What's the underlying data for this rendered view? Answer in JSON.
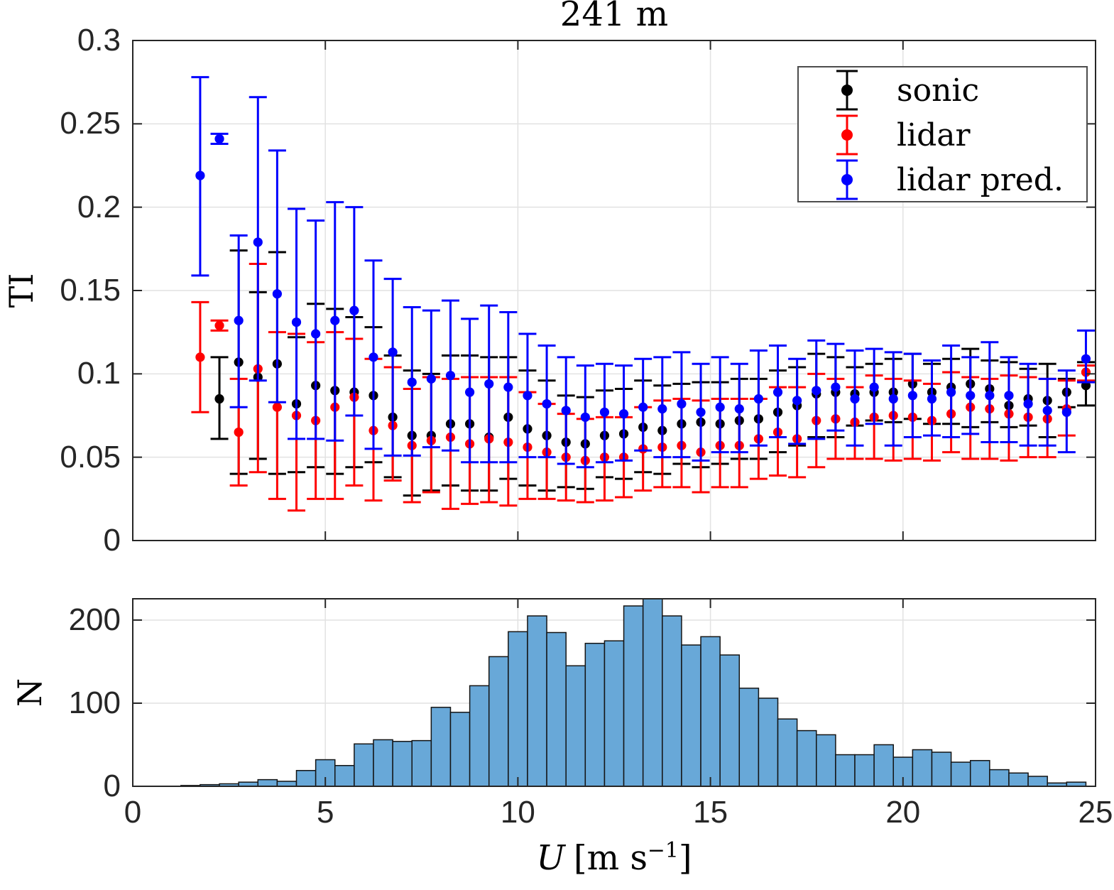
{
  "title": "241 m",
  "axes": {
    "ti": {
      "label": "TI",
      "tick_labels": [
        "0",
        "0.05",
        "0.1",
        "0.15",
        "0.2",
        "0.25",
        "0.3"
      ],
      "lim": [
        0,
        0.3
      ]
    },
    "n": {
      "label": "N",
      "tick_labels": [
        "0",
        "100",
        "200"
      ],
      "lim": [
        0,
        225.6
      ]
    },
    "u": {
      "label_var": "U",
      "label_pre": "[m s",
      "label_sup": "−1",
      "label_post": "]",
      "tick_labels": [
        "0",
        "5",
        "10",
        "15",
        "20",
        "25"
      ],
      "lim": [
        0,
        25
      ]
    }
  },
  "legend": {
    "position": "top-right",
    "entries": [
      {
        "label": "sonic",
        "color": "#000000"
      },
      {
        "label": "lidar",
        "color": "#ff0000"
      },
      {
        "label": "lidar pred.",
        "color": "#0000ff"
      }
    ]
  },
  "colors": {
    "background": "#ffffff",
    "grid": "#e2e2e2",
    "axis": "#262626",
    "histogram_fill": "#68a8d8",
    "histogram_edge": "#141414"
  },
  "chart_data": [
    {
      "type": "scatter",
      "subtype": "errorbar",
      "title": "241 m",
      "ylabel": "TI",
      "xlabel": "U [m s-1]",
      "xlim": [
        0,
        25
      ],
      "ylim": [
        0,
        0.3
      ],
      "grid": true,
      "legend_position": "top-right",
      "point_format": [
        "u",
        "ti",
        "err_lo",
        "err_hi"
      ],
      "series": [
        {
          "name": "sonic",
          "color": "#000000",
          "points": [
            [
              2.25,
              0.085,
              0.061,
              0.11
            ],
            [
              2.75,
              0.107,
              0.04,
              0.174
            ],
            [
              3.25,
              0.098,
              0.049,
              0.149
            ],
            [
              3.75,
              0.106,
              0.04,
              0.173
            ],
            [
              4.25,
              0.082,
              0.041,
              0.122
            ],
            [
              4.75,
              0.093,
              0.044,
              0.142
            ],
            [
              5.25,
              0.09,
              0.04,
              0.139
            ],
            [
              5.75,
              0.089,
              0.044,
              0.134
            ],
            [
              6.25,
              0.087,
              0.047,
              0.128
            ],
            [
              6.75,
              0.074,
              0.038,
              0.111
            ],
            [
              7.25,
              0.063,
              0.027,
              0.102
            ],
            [
              7.75,
              0.063,
              0.03,
              0.1
            ],
            [
              8.25,
              0.07,
              0.033,
              0.111
            ],
            [
              8.75,
              0.07,
              0.03,
              0.111
            ],
            [
              9.25,
              0.062,
              0.03,
              0.11
            ],
            [
              9.75,
              0.074,
              0.037,
              0.11
            ],
            [
              10.25,
              0.067,
              0.033,
              0.102
            ],
            [
              10.75,
              0.063,
              0.03,
              0.096
            ],
            [
              11.25,
              0.059,
              0.032,
              0.087
            ],
            [
              11.75,
              0.058,
              0.031,
              0.086
            ],
            [
              12.25,
              0.063,
              0.038,
              0.09
            ],
            [
              12.75,
              0.064,
              0.037,
              0.091
            ],
            [
              13.25,
              0.068,
              0.041,
              0.096
            ],
            [
              13.75,
              0.066,
              0.04,
              0.093
            ],
            [
              14.25,
              0.07,
              0.046,
              0.094
            ],
            [
              14.75,
              0.071,
              0.044,
              0.095
            ],
            [
              15.25,
              0.07,
              0.046,
              0.095
            ],
            [
              15.75,
              0.072,
              0.049,
              0.097
            ],
            [
              16.25,
              0.073,
              0.049,
              0.097
            ],
            [
              16.75,
              0.077,
              0.053,
              0.102
            ],
            [
              17.25,
              0.081,
              0.057,
              0.104
            ],
            [
              17.75,
              0.088,
              0.062,
              0.112
            ],
            [
              18.25,
              0.089,
              0.062,
              0.11
            ],
            [
              18.75,
              0.088,
              0.069,
              0.104
            ],
            [
              19.25,
              0.089,
              0.072,
              0.106
            ],
            [
              19.75,
              0.089,
              0.071,
              0.109
            ],
            [
              20.25,
              0.094,
              0.073,
              0.112
            ],
            [
              20.75,
              0.089,
              0.07,
              0.106
            ],
            [
              21.25,
              0.092,
              0.07,
              0.109
            ],
            [
              21.75,
              0.094,
              0.068,
              0.115
            ],
            [
              22.25,
              0.091,
              0.071,
              0.108
            ],
            [
              22.75,
              0.081,
              0.068,
              0.107
            ],
            [
              23.25,
              0.085,
              0.069,
              0.103
            ],
            [
              23.75,
              0.084,
              0.062,
              0.106
            ],
            [
              24.25,
              0.089,
              0.08,
              0.097
            ],
            [
              24.75,
              0.093,
              0.081,
              0.107
            ]
          ]
        },
        {
          "name": "lidar",
          "color": "#ff0000",
          "points": [
            [
              1.75,
              0.11,
              0.077,
              0.143
            ],
            [
              2.25,
              0.129,
              0.126,
              0.132
            ],
            [
              2.75,
              0.065,
              0.033,
              0.097
            ],
            [
              3.25,
              0.103,
              0.041,
              0.166
            ],
            [
              3.75,
              0.08,
              0.025,
              0.125
            ],
            [
              4.25,
              0.075,
              0.018,
              0.124
            ],
            [
              4.75,
              0.072,
              0.025,
              0.119
            ],
            [
              5.25,
              0.08,
              0.025,
              0.125
            ],
            [
              5.75,
              0.086,
              0.033,
              0.121
            ],
            [
              6.25,
              0.066,
              0.024,
              0.109
            ],
            [
              6.75,
              0.069,
              0.036,
              0.104
            ],
            [
              7.25,
              0.057,
              0.023,
              0.091
            ],
            [
              7.75,
              0.06,
              0.029,
              0.098
            ],
            [
              8.25,
              0.062,
              0.019,
              0.097
            ],
            [
              8.75,
              0.058,
              0.022,
              0.098
            ],
            [
              9.25,
              0.061,
              0.023,
              0.098
            ],
            [
              9.75,
              0.059,
              0.021,
              0.098
            ],
            [
              10.25,
              0.056,
              0.025,
              0.089
            ],
            [
              10.75,
              0.053,
              0.025,
              0.082
            ],
            [
              11.25,
              0.05,
              0.024,
              0.076
            ],
            [
              11.75,
              0.048,
              0.023,
              0.073
            ],
            [
              12.25,
              0.05,
              0.024,
              0.074
            ],
            [
              12.75,
              0.05,
              0.026,
              0.074
            ],
            [
              13.25,
              0.055,
              0.03,
              0.08
            ],
            [
              13.75,
              0.056,
              0.032,
              0.084
            ],
            [
              14.25,
              0.057,
              0.032,
              0.085
            ],
            [
              14.75,
              0.053,
              0.029,
              0.084
            ],
            [
              15.25,
              0.057,
              0.032,
              0.085
            ],
            [
              15.75,
              0.057,
              0.032,
              0.085
            ],
            [
              16.25,
              0.061,
              0.037,
              0.085
            ],
            [
              16.75,
              0.065,
              0.039,
              0.092
            ],
            [
              17.25,
              0.061,
              0.038,
              0.092
            ],
            [
              17.75,
              0.072,
              0.044,
              0.1
            ],
            [
              18.25,
              0.073,
              0.049,
              0.097
            ],
            [
              18.75,
              0.071,
              0.049,
              0.092
            ],
            [
              19.25,
              0.074,
              0.049,
              0.099
            ],
            [
              19.75,
              0.075,
              0.048,
              0.097
            ],
            [
              20.25,
              0.074,
              0.049,
              0.096
            ],
            [
              20.75,
              0.072,
              0.048,
              0.094
            ],
            [
              21.25,
              0.076,
              0.053,
              0.101
            ],
            [
              21.75,
              0.08,
              0.049,
              0.098
            ],
            [
              22.25,
              0.079,
              0.049,
              0.097
            ],
            [
              22.75,
              0.076,
              0.048,
              0.099
            ],
            [
              23.25,
              0.074,
              0.05,
              0.098
            ],
            [
              23.75,
              0.073,
              0.05,
              0.097
            ],
            [
              24.25,
              0.079,
              0.063,
              0.096
            ],
            [
              24.75,
              0.101,
              0.096,
              0.105
            ]
          ]
        },
        {
          "name": "lidar pred.",
          "color": "#0000ff",
          "points": [
            [
              1.75,
              0.219,
              0.159,
              0.278
            ],
            [
              2.25,
              0.241,
              0.238,
              0.244
            ],
            [
              2.75,
              0.132,
              0.08,
              0.183
            ],
            [
              3.25,
              0.179,
              0.096,
              0.266
            ],
            [
              3.75,
              0.148,
              0.083,
              0.234
            ],
            [
              4.25,
              0.131,
              0.061,
              0.199
            ],
            [
              4.75,
              0.124,
              0.061,
              0.192
            ],
            [
              5.25,
              0.132,
              0.06,
              0.203
            ],
            [
              5.75,
              0.138,
              0.075,
              0.2
            ],
            [
              6.25,
              0.11,
              0.055,
              0.168
            ],
            [
              6.75,
              0.113,
              0.051,
              0.157
            ],
            [
              7.25,
              0.095,
              0.051,
              0.14
            ],
            [
              7.75,
              0.097,
              0.056,
              0.138
            ],
            [
              8.25,
              0.099,
              0.054,
              0.144
            ],
            [
              8.75,
              0.089,
              0.047,
              0.133
            ],
            [
              9.25,
              0.094,
              0.047,
              0.141
            ],
            [
              9.75,
              0.092,
              0.047,
              0.137
            ],
            [
              10.25,
              0.087,
              0.05,
              0.124
            ],
            [
              10.75,
              0.082,
              0.05,
              0.117
            ],
            [
              11.25,
              0.078,
              0.046,
              0.11
            ],
            [
              11.75,
              0.074,
              0.044,
              0.105
            ],
            [
              12.25,
              0.077,
              0.047,
              0.106
            ],
            [
              12.75,
              0.076,
              0.048,
              0.105
            ],
            [
              13.25,
              0.08,
              0.054,
              0.109
            ],
            [
              13.75,
              0.079,
              0.05,
              0.11
            ],
            [
              14.25,
              0.082,
              0.05,
              0.113
            ],
            [
              14.75,
              0.077,
              0.048,
              0.106
            ],
            [
              15.25,
              0.08,
              0.053,
              0.11
            ],
            [
              15.75,
              0.079,
              0.053,
              0.106
            ],
            [
              16.25,
              0.085,
              0.057,
              0.114
            ],
            [
              16.75,
              0.089,
              0.062,
              0.117
            ],
            [
              17.25,
              0.084,
              0.058,
              0.109
            ],
            [
              17.75,
              0.09,
              0.061,
              0.12
            ],
            [
              18.25,
              0.092,
              0.066,
              0.118
            ],
            [
              18.75,
              0.085,
              0.057,
              0.114
            ],
            [
              19.25,
              0.092,
              0.07,
              0.115
            ],
            [
              19.75,
              0.085,
              0.057,
              0.113
            ],
            [
              20.25,
              0.087,
              0.062,
              0.112
            ],
            [
              20.75,
              0.085,
              0.063,
              0.108
            ],
            [
              21.25,
              0.089,
              0.062,
              0.117
            ],
            [
              21.75,
              0.087,
              0.064,
              0.11
            ],
            [
              22.25,
              0.087,
              0.059,
              0.119
            ],
            [
              22.75,
              0.087,
              0.059,
              0.11
            ],
            [
              23.25,
              0.082,
              0.057,
              0.106
            ],
            [
              23.75,
              0.078,
              0.057,
              0.097
            ],
            [
              24.25,
              0.077,
              0.053,
              0.102
            ],
            [
              24.75,
              0.109,
              0.095,
              0.126
            ]
          ]
        }
      ]
    },
    {
      "type": "bar",
      "subtype": "histogram",
      "ylabel": "N",
      "xlabel": "U [m s-1]",
      "xlim": [
        0,
        25
      ],
      "ylim": [
        0,
        225.6
      ],
      "grid": true,
      "bin_width": 0.5,
      "bin_centers": [
        1.5,
        2,
        2.5,
        3,
        3.5,
        4,
        4.5,
        5,
        5.5,
        6,
        6.5,
        7,
        7.5,
        8,
        8.5,
        9,
        9.5,
        10,
        10.5,
        11,
        11.5,
        12,
        12.5,
        13,
        13.5,
        14,
        14.5,
        15,
        15.5,
        16,
        16.5,
        17,
        17.5,
        18,
        18.5,
        19,
        19.5,
        20,
        20.5,
        21,
        21.5,
        22,
        22.5,
        23,
        23.5,
        24,
        24.5
      ],
      "values": [
        1,
        2,
        3,
        5,
        8,
        6,
        19,
        32,
        25,
        51,
        56,
        54,
        55,
        95,
        89,
        121,
        156,
        186,
        205,
        185,
        145,
        172,
        175,
        217,
        226,
        205,
        170,
        180,
        158,
        118,
        106,
        81,
        67,
        62,
        38,
        38,
        50,
        35,
        44,
        41,
        29,
        31,
        20,
        16,
        12,
        4,
        5
      ]
    }
  ]
}
